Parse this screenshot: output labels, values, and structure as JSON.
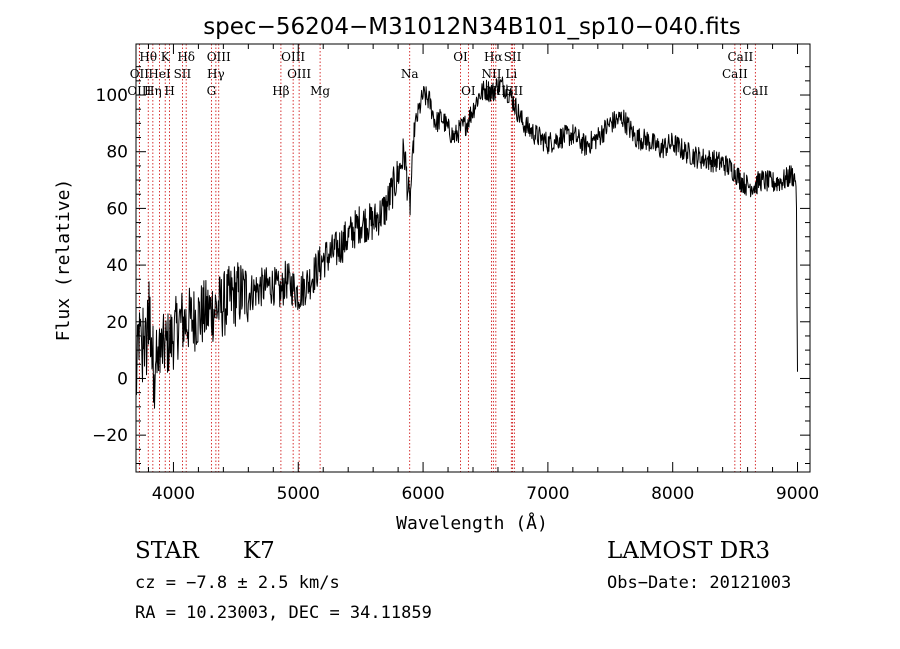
{
  "chart_data": {
    "type": "line",
    "title": "spec−56204−M31012N34B101_sp10−040.fits",
    "xlabel": "Wavelength (Å)",
    "ylabel": "Flux (relative)",
    "xlim": [
      3700,
      9100
    ],
    "ylim": [
      -33,
      118
    ],
    "x_ticks": [
      4000,
      5000,
      6000,
      7000,
      8000,
      9000
    ],
    "y_ticks": [
      -20,
      0,
      20,
      40,
      60,
      80,
      100
    ],
    "grid": false,
    "line_color": "#000000",
    "marker_color": "#cc0000",
    "spectrum_anchors": {
      "x": [
        3700,
        3720,
        3760,
        3800,
        3850,
        3900,
        3950,
        4000,
        4050,
        4100,
        4200,
        4300,
        4400,
        4500,
        4600,
        4700,
        4800,
        4861,
        4900,
        5000,
        5100,
        5200,
        5300,
        5400,
        5500,
        5600,
        5700,
        5800,
        5850,
        5893,
        5930,
        5970,
        6000,
        6050,
        6100,
        6150,
        6200,
        6250,
        6300,
        6350,
        6400,
        6450,
        6500,
        6563,
        6600,
        6650,
        6700,
        6750,
        6800,
        6900,
        7000,
        7100,
        7200,
        7300,
        7400,
        7500,
        7600,
        7700,
        7800,
        7900,
        8000,
        8100,
        8200,
        8300,
        8400,
        8500,
        8542,
        8600,
        8662,
        8700,
        8800,
        8900,
        8950,
        8990,
        9000
      ],
      "flux": [
        -5,
        15,
        10,
        20,
        5,
        10,
        12,
        15,
        20,
        20,
        22,
        24,
        26,
        30,
        30,
        32,
        33,
        30,
        35,
        30,
        35,
        42,
        45,
        50,
        55,
        55,
        60,
        72,
        80,
        60,
        88,
        95,
        100,
        98,
        90,
        92,
        88,
        85,
        88,
        90,
        95,
        100,
        102,
        101,
        104,
        103,
        100,
        95,
        90,
        86,
        83,
        85,
        86,
        82,
        85,
        90,
        92,
        85,
        84,
        81,
        83,
        80,
        78,
        77,
        76,
        73,
        70,
        68,
        68,
        70,
        69,
        70,
        72,
        70,
        0
      ]
    },
    "lines": [
      {
        "label": "Hθ",
        "wl": 3798,
        "row": 0
      },
      {
        "label": "OII",
        "wl": 3727,
        "row": 1
      },
      {
        "label": "OIII",
        "wl": 3727,
        "row": 2
      },
      {
        "label": "Hη",
        "wl": 3835,
        "row": 2
      },
      {
        "label": "HeI",
        "wl": 3889,
        "row": 1
      },
      {
        "label": "K",
        "wl": 3934,
        "row": 0
      },
      {
        "label": "H",
        "wl": 3969,
        "row": 2
      },
      {
        "label": "SII",
        "wl": 4072,
        "row": 1
      },
      {
        "label": "Hδ",
        "wl": 4102,
        "row": 0
      },
      {
        "label": "OIII",
        "wl": 4363,
        "row": 0
      },
      {
        "label": "Hγ",
        "wl": 4340,
        "row": 1
      },
      {
        "label": "G",
        "wl": 4304,
        "row": 2
      },
      {
        "label": "Hβ",
        "wl": 4861,
        "row": 2
      },
      {
        "label": "OIII",
        "wl": 4959,
        "row": 0
      },
      {
        "label": "OIII",
        "wl": 5007,
        "row": 1
      },
      {
        "label": "Mg",
        "wl": 5175,
        "row": 2
      },
      {
        "label": "Na",
        "wl": 5893,
        "row": 1
      },
      {
        "label": "OI",
        "wl": 6300,
        "row": 0
      },
      {
        "label": "OI",
        "wl": 6363,
        "row": 2
      },
      {
        "label": "Hα",
        "wl": 6563,
        "row": 0
      },
      {
        "label": "NII",
        "wl": 6548,
        "row": 1
      },
      {
        "label": "NII",
        "wl": 6583,
        "row": 2
      },
      {
        "label": "SII",
        "wl": 6717,
        "row": 0
      },
      {
        "label": "Li",
        "wl": 6707,
        "row": 1
      },
      {
        "label": "SII",
        "wl": 6731,
        "row": 2
      },
      {
        "label": "CaII",
        "wl": 8542,
        "row": 0
      },
      {
        "label": "CaII",
        "wl": 8498,
        "row": 1
      },
      {
        "label": "CaII",
        "wl": 8662,
        "row": 2
      }
    ]
  },
  "info": {
    "object_class": "STAR",
    "subclass": "K7",
    "survey": "LAMOST DR3",
    "cz": "cz = −7.8 ± 2.5 km/s",
    "obs_date": "Obs−Date: 20121003",
    "coords": "RA =  10.23003, DEC =  34.11859"
  }
}
